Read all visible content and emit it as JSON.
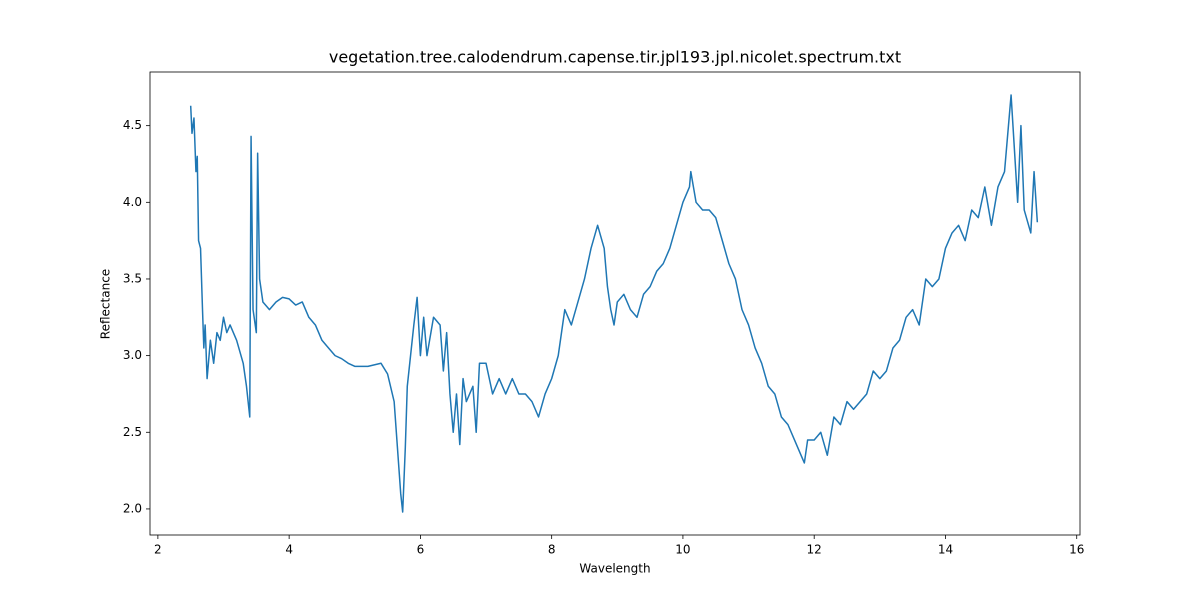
{
  "chart_data": {
    "type": "line",
    "title": "vegetation.tree.calodendrum.capense.tir.jpl193.jpl.nicolet.spectrum.txt",
    "x_label": "Wavelength",
    "y_label": "Reflectance",
    "color": "#1f77b4",
    "x": [
      2.5,
      2.52,
      2.55,
      2.58,
      2.6,
      2.62,
      2.65,
      2.68,
      2.7,
      2.72,
      2.75,
      2.8,
      2.85,
      2.9,
      2.95,
      3.0,
      3.05,
      3.1,
      3.2,
      3.3,
      3.35,
      3.4,
      3.42,
      3.45,
      3.5,
      3.52,
      3.55,
      3.6,
      3.7,
      3.8,
      3.9,
      4.0,
      4.1,
      4.2,
      4.3,
      4.4,
      4.5,
      4.6,
      4.7,
      4.8,
      4.9,
      5.0,
      5.2,
      5.4,
      5.5,
      5.6,
      5.65,
      5.7,
      5.73,
      5.77,
      5.8,
      5.85,
      5.9,
      5.95,
      6.0,
      6.05,
      6.1,
      6.2,
      6.3,
      6.35,
      6.4,
      6.45,
      6.5,
      6.55,
      6.6,
      6.65,
      6.7,
      6.8,
      6.85,
      6.9,
      7.0,
      7.1,
      7.2,
      7.3,
      7.4,
      7.5,
      7.6,
      7.7,
      7.8,
      7.9,
      8.0,
      8.1,
      8.2,
      8.3,
      8.4,
      8.5,
      8.6,
      8.7,
      8.8,
      8.85,
      8.9,
      8.95,
      9.0,
      9.1,
      9.2,
      9.3,
      9.4,
      9.5,
      9.6,
      9.7,
      9.8,
      9.9,
      10.0,
      10.1,
      10.12,
      10.2,
      10.3,
      10.4,
      10.5,
      10.6,
      10.7,
      10.8,
      10.9,
      11.0,
      11.1,
      11.2,
      11.3,
      11.4,
      11.5,
      11.6,
      11.7,
      11.8,
      11.85,
      11.9,
      12.0,
      12.1,
      12.2,
      12.3,
      12.4,
      12.5,
      12.6,
      12.7,
      12.8,
      12.9,
      13.0,
      13.1,
      13.2,
      13.3,
      13.4,
      13.5,
      13.6,
      13.7,
      13.8,
      13.9,
      14.0,
      14.1,
      14.2,
      14.3,
      14.4,
      14.5,
      14.6,
      14.7,
      14.8,
      14.9,
      15.0,
      15.1,
      15.15,
      15.2,
      15.3,
      15.35,
      15.4
    ],
    "values": [
      4.63,
      4.45,
      4.55,
      4.2,
      4.3,
      3.75,
      3.7,
      3.3,
      3.05,
      3.2,
      2.85,
      3.1,
      2.95,
      3.15,
      3.1,
      3.25,
      3.15,
      3.2,
      3.1,
      2.95,
      2.8,
      2.6,
      4.43,
      3.3,
      3.15,
      4.32,
      3.5,
      3.35,
      3.3,
      3.35,
      3.38,
      3.37,
      3.33,
      3.35,
      3.25,
      3.2,
      3.1,
      3.05,
      3.0,
      2.98,
      2.95,
      2.93,
      2.93,
      2.95,
      2.88,
      2.7,
      2.4,
      2.1,
      1.98,
      2.4,
      2.8,
      3.0,
      3.2,
      3.38,
      3.0,
      3.25,
      3.0,
      3.25,
      3.2,
      2.9,
      3.15,
      2.75,
      2.5,
      2.75,
      2.42,
      2.85,
      2.7,
      2.8,
      2.5,
      2.95,
      2.95,
      2.75,
      2.85,
      2.75,
      2.85,
      2.75,
      2.75,
      2.7,
      2.6,
      2.75,
      2.85,
      3.0,
      3.3,
      3.2,
      3.35,
      3.5,
      3.7,
      3.85,
      3.7,
      3.45,
      3.3,
      3.2,
      3.35,
      3.4,
      3.3,
      3.25,
      3.4,
      3.45,
      3.55,
      3.6,
      3.7,
      3.85,
      4.0,
      4.1,
      4.2,
      4.0,
      3.95,
      3.95,
      3.9,
      3.75,
      3.6,
      3.5,
      3.3,
      3.2,
      3.05,
      2.95,
      2.8,
      2.75,
      2.6,
      2.55,
      2.45,
      2.35,
      2.3,
      2.45,
      2.45,
      2.5,
      2.35,
      2.6,
      2.55,
      2.7,
      2.65,
      2.7,
      2.75,
      2.9,
      2.85,
      2.9,
      3.05,
      3.1,
      3.25,
      3.3,
      3.2,
      3.5,
      3.45,
      3.5,
      3.7,
      3.8,
      3.85,
      3.75,
      3.95,
      3.9,
      4.1,
      3.85,
      4.1,
      4.2,
      4.7,
      4.0,
      4.5,
      3.95,
      3.8,
      4.2,
      3.87
    ],
    "xlim": [
      1.88,
      16.05
    ],
    "ylim": [
      1.83,
      4.85
    ],
    "xticks": [
      2,
      4,
      6,
      8,
      10,
      12,
      14,
      16
    ],
    "yticks": [
      {
        "value": 2.0,
        "label": "2.0"
      },
      {
        "value": 2.5,
        "label": "2.5"
      },
      {
        "value": 3.0,
        "label": "3.0"
      },
      {
        "value": 3.5,
        "label": "3.5"
      },
      {
        "value": 4.0,
        "label": "4.0"
      },
      {
        "value": 4.5,
        "label": "4.5"
      }
    ]
  }
}
